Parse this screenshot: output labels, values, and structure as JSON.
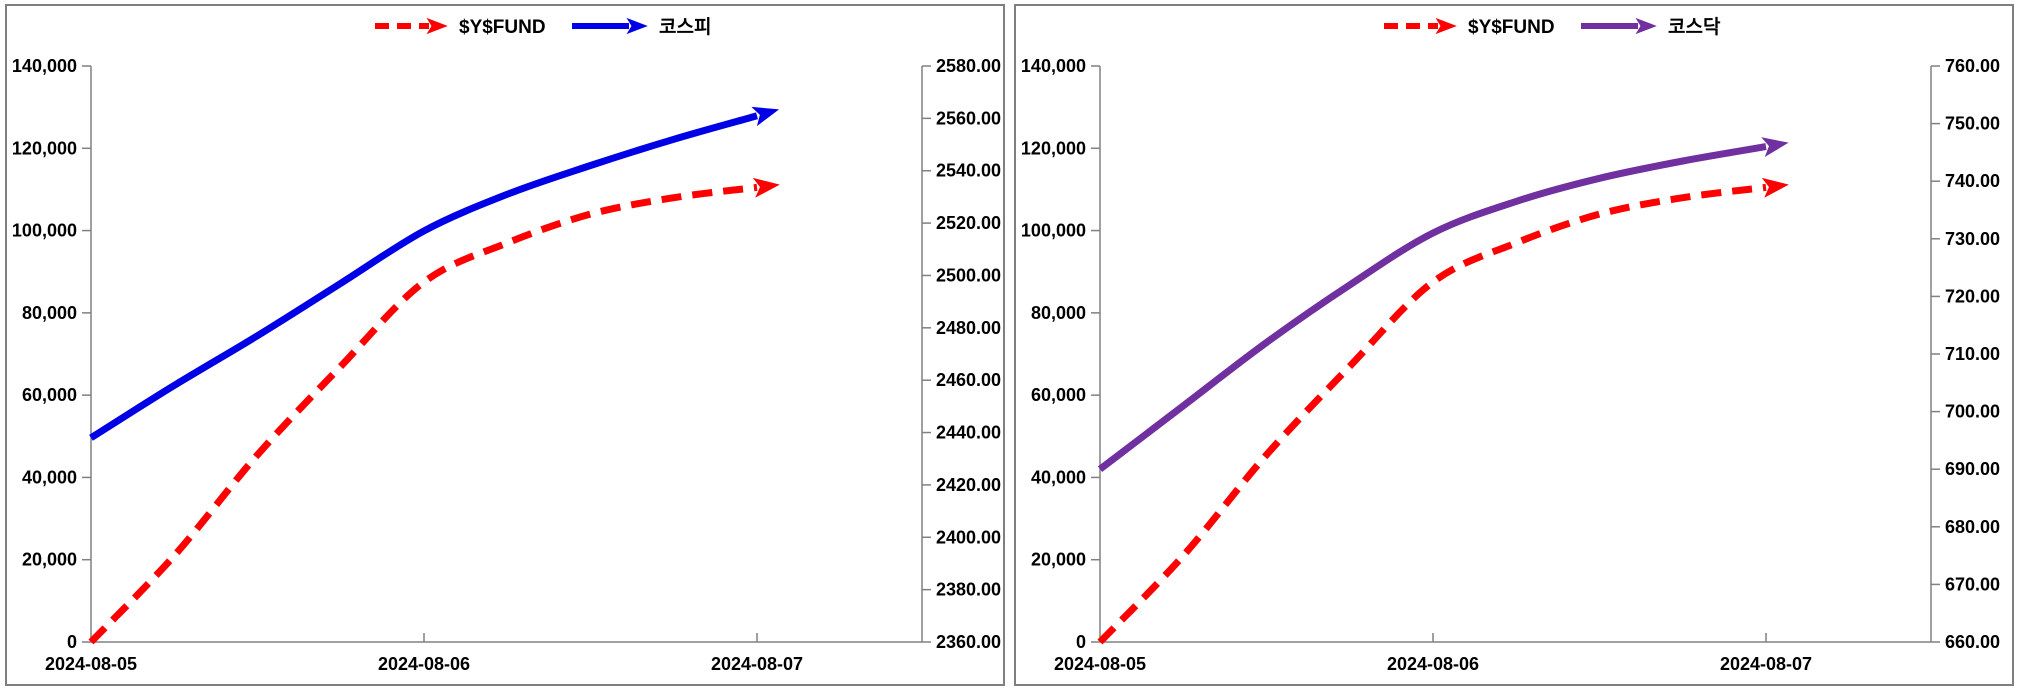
{
  "style": {
    "fund_color": "#FF0000",
    "kospi_color": "#0000E6",
    "kosdaq_color": "#7030A0",
    "axis_color": "#808080",
    "text_color": "#000000",
    "panel_border_color": "#7F7F7F",
    "background_color": "#FFFFFF"
  },
  "chart_data": [
    {
      "type": "line",
      "name": "kospi-chart",
      "x_axis": {
        "tick_labels": [
          "2024-08-05",
          "2024-08-06",
          "2024-08-07"
        ]
      },
      "left_y_axis": {
        "min": 0,
        "max": 140000,
        "step": 20000,
        "tick_labels": [
          "140,000",
          "120,000",
          "100,000",
          "80,000",
          "60,000",
          "40,000",
          "20,000",
          "0"
        ]
      },
      "right_y_axis": {
        "min": 2360,
        "max": 2580,
        "step": 20,
        "tick_labels": [
          "2580.00",
          "2560.00",
          "2540.00",
          "2520.00",
          "2500.00",
          "2480.00",
          "2460.00",
          "2440.00",
          "2420.00",
          "2400.00",
          "2380.00",
          "2360.00"
        ]
      },
      "legend": [
        {
          "label": "$Y$FUND",
          "line_style": "dashed",
          "color": "#FF0000"
        },
        {
          "label": "코스피",
          "line_style": "solid",
          "color": "#0000E6"
        }
      ],
      "series": [
        {
          "name": "$Y$FUND",
          "axis": "left",
          "line_style": "dashed",
          "color": "#FF0000",
          "arrow_end": true,
          "x_days": [
            0,
            0.25,
            0.5,
            0.75,
            1,
            1.25,
            1.5,
            1.75,
            2
          ],
          "values": [
            0,
            21000,
            45500,
            67000,
            87500,
            97000,
            104000,
            108000,
            110500
          ]
        },
        {
          "name": "코스피",
          "axis": "right",
          "line_style": "solid",
          "color": "#0000E6",
          "arrow_end": true,
          "x_days": [
            0,
            0.25,
            0.5,
            0.75,
            1,
            1.25,
            1.5,
            1.75,
            2
          ],
          "values": [
            2438,
            2458,
            2477,
            2497,
            2517,
            2531,
            2542,
            2552,
            2561
          ]
        }
      ]
    },
    {
      "type": "line",
      "name": "kosdaq-chart",
      "x_axis": {
        "tick_labels": [
          "2024-08-05",
          "2024-08-06",
          "2024-08-07"
        ]
      },
      "left_y_axis": {
        "min": 0,
        "max": 140000,
        "step": 20000,
        "tick_labels": [
          "140,000",
          "120,000",
          "100,000",
          "80,000",
          "60,000",
          "40,000",
          "20,000",
          "0"
        ]
      },
      "right_y_axis": {
        "min": 660,
        "max": 760,
        "step": 10,
        "tick_labels": [
          "760.00",
          "750.00",
          "740.00",
          "730.00",
          "720.00",
          "710.00",
          "700.00",
          "690.00",
          "680.00",
          "670.00",
          "660.00"
        ]
      },
      "legend": [
        {
          "label": "$Y$FUND",
          "line_style": "dashed",
          "color": "#FF0000"
        },
        {
          "label": "코스닥",
          "line_style": "solid",
          "color": "#7030A0"
        }
      ],
      "series": [
        {
          "name": "$Y$FUND",
          "axis": "left",
          "line_style": "dashed",
          "color": "#FF0000",
          "arrow_end": true,
          "x_days": [
            0,
            0.25,
            0.5,
            0.75,
            1,
            1.25,
            1.5,
            1.75,
            2
          ],
          "values": [
            0,
            21000,
            45500,
            67000,
            87500,
            97000,
            104000,
            108000,
            110500
          ]
        },
        {
          "name": "코스닥",
          "axis": "right",
          "line_style": "solid",
          "color": "#7030A0",
          "arrow_end": true,
          "x_days": [
            0,
            0.25,
            0.5,
            0.75,
            1,
            1.25,
            1.5,
            1.75,
            2
          ],
          "values": [
            690,
            701,
            712,
            722,
            731,
            736.5,
            740.5,
            743.5,
            746
          ]
        }
      ]
    }
  ]
}
